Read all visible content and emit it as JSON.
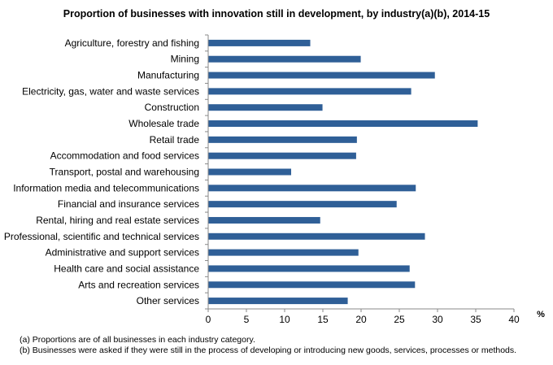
{
  "chart_data": {
    "type": "bar",
    "orientation": "horizontal",
    "title": "Proportion of businesses  with innovation still in development, by industry(a)(b),  2014-15",
    "xlabel": "%",
    "ylabel": "",
    "xlim": [
      0,
      40
    ],
    "xticks": [
      0,
      5,
      10,
      15,
      20,
      25,
      30,
      35,
      40
    ],
    "grid": false,
    "bar_color": "#2F5F97",
    "categories": [
      "Agriculture, forestry and fishing",
      "Mining",
      "Manufacturing",
      "Electricity, gas, water and waste services",
      "Construction",
      "Wholesale trade",
      "Retail trade",
      "Accommodation and food services",
      "Transport, postal and warehousing",
      "Information media and telecommunications",
      "Financial and insurance services",
      "Rental, hiring and real estate services",
      "Professional, scientific and technical services",
      "Administrative and support services",
      "Health care and social assistance",
      "Arts and recreation services",
      "Other services"
    ],
    "values": [
      13.3,
      19.9,
      29.6,
      26.5,
      14.9,
      35.2,
      19.4,
      19.3,
      10.8,
      27.1,
      24.6,
      14.6,
      28.3,
      19.6,
      26.3,
      27.0,
      18.2
    ]
  },
  "footnotes": [
    "(a) Proportions are of all businesses in each industry category.",
    "(b) Businesses were asked if they were still in the process of developing or introducing new goods, services, processes or methods."
  ]
}
